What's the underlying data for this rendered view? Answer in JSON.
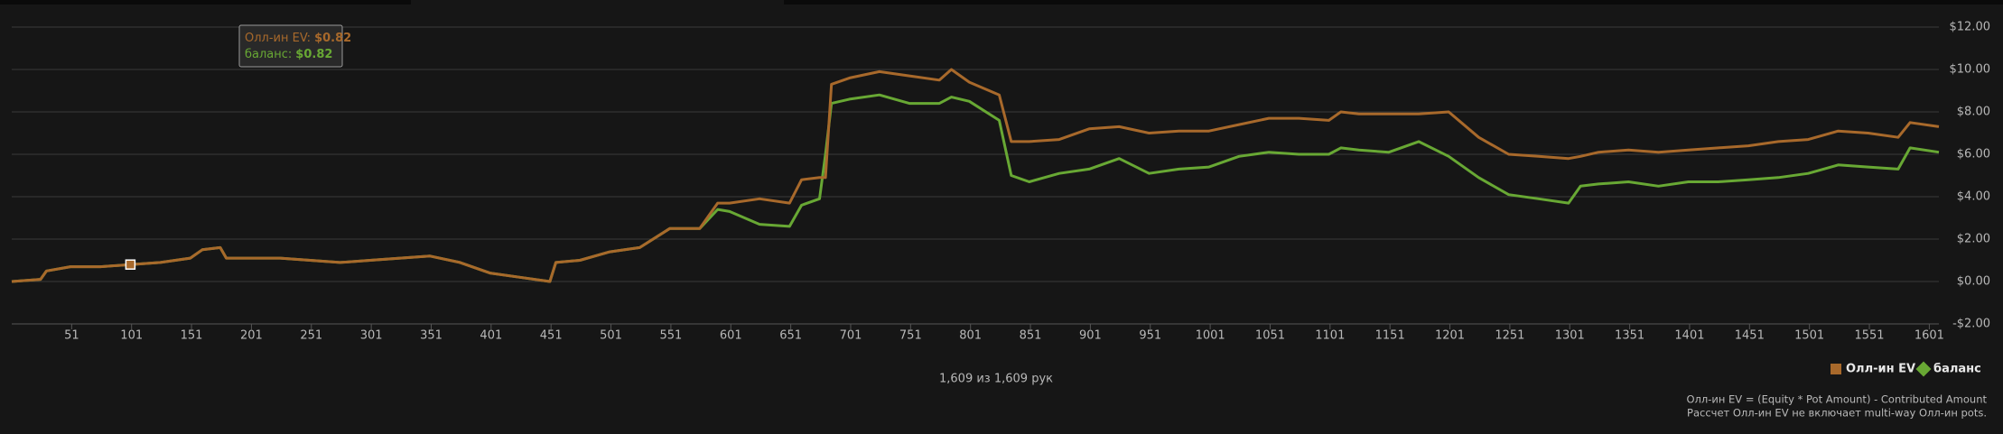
{
  "chart_data": {
    "type": "line",
    "x": [
      1,
      25,
      30,
      50,
      75,
      100,
      125,
      150,
      160,
      175,
      180,
      200,
      225,
      250,
      275,
      300,
      325,
      350,
      375,
      400,
      425,
      450,
      455,
      475,
      500,
      525,
      550,
      575,
      590,
      600,
      625,
      650,
      660,
      675,
      680,
      685,
      700,
      725,
      750,
      775,
      785,
      800,
      825,
      835,
      850,
      875,
      900,
      925,
      950,
      975,
      1000,
      1025,
      1050,
      1075,
      1100,
      1110,
      1125,
      1150,
      1175,
      1200,
      1225,
      1250,
      1275,
      1300,
      1310,
      1325,
      1350,
      1375,
      1400,
      1425,
      1450,
      1475,
      1500,
      1525,
      1550,
      1575,
      1585,
      1609
    ],
    "series": [
      {
        "name": "Олл-ин EV",
        "color": "#a8692b",
        "values": [
          0,
          0.1,
          0.5,
          0.7,
          0.7,
          0.8,
          0.9,
          1.1,
          1.5,
          1.6,
          1.1,
          1.1,
          1.1,
          1.0,
          0.9,
          1.0,
          1.1,
          1.2,
          0.9,
          0.4,
          0.2,
          0.0,
          0.9,
          1.0,
          1.4,
          1.6,
          2.5,
          2.5,
          3.7,
          3.7,
          3.9,
          3.7,
          4.8,
          4.9,
          4.9,
          9.3,
          9.6,
          9.9,
          9.7,
          9.5,
          10.0,
          9.4,
          8.8,
          6.6,
          6.6,
          6.7,
          7.2,
          7.3,
          7.0,
          7.1,
          7.1,
          7.4,
          7.7,
          7.7,
          7.6,
          8.0,
          7.9,
          7.9,
          7.9,
          8.0,
          6.8,
          6.0,
          5.9,
          5.8,
          5.9,
          6.1,
          6.2,
          6.1,
          6.2,
          6.3,
          6.4,
          6.6,
          6.7,
          7.1,
          7.0,
          6.8,
          7.5,
          7.3
        ]
      },
      {
        "name": "баланс",
        "color": "#68a834",
        "values": [
          0,
          0.1,
          0.5,
          0.7,
          0.7,
          0.8,
          0.9,
          1.1,
          1.5,
          1.6,
          1.1,
          1.1,
          1.1,
          1.0,
          0.9,
          1.0,
          1.1,
          1.2,
          0.9,
          0.4,
          0.2,
          0.0,
          0.9,
          1.0,
          1.4,
          1.6,
          2.5,
          2.5,
          3.4,
          3.3,
          2.7,
          2.6,
          3.6,
          3.9,
          6.0,
          8.4,
          8.6,
          8.8,
          8.4,
          8.4,
          8.7,
          8.5,
          7.6,
          5.0,
          4.7,
          5.1,
          5.3,
          5.8,
          5.1,
          5.3,
          5.4,
          5.9,
          6.1,
          6.0,
          6.0,
          6.3,
          6.2,
          6.1,
          6.6,
          5.9,
          4.9,
          4.1,
          3.9,
          3.7,
          4.5,
          4.6,
          4.7,
          4.5,
          4.7,
          4.7,
          4.8,
          4.9,
          5.1,
          5.5,
          5.4,
          5.3,
          6.3,
          6.1
        ]
      }
    ],
    "xlim": [
      1,
      1609
    ],
    "xticks": [
      51,
      101,
      151,
      201,
      251,
      301,
      351,
      401,
      451,
      501,
      551,
      601,
      651,
      701,
      751,
      801,
      851,
      901,
      951,
      1001,
      1051,
      1101,
      1151,
      1201,
      1251,
      1301,
      1351,
      1401,
      1451,
      1501,
      1551,
      1601
    ],
    "ylim": [
      -2,
      12
    ],
    "yticks": [
      {
        "value": -2,
        "label": "-$2.00"
      },
      {
        "value": 0,
        "label": "$0.00"
      },
      {
        "value": 2,
        "label": "$2.00"
      },
      {
        "value": 4,
        "label": "$4.00"
      },
      {
        "value": 6,
        "label": "$6.00"
      },
      {
        "value": 8,
        "label": "$8.00"
      },
      {
        "value": 10,
        "label": "$10.00"
      },
      {
        "value": 12,
        "label": "$12.00"
      }
    ],
    "grid": true,
    "legend": "bottom-right",
    "tooltip": {
      "items": [
        {
          "label": "Олл-ин EV:",
          "value": "$0.82"
        },
        {
          "label": "баланс:",
          "value": "$0.82"
        }
      ]
    }
  },
  "footer": {
    "hands": "1,609 из 1,609 рук",
    "notes": [
      "Олл-ин EV = (Equity * Pot Amount) - Contributed Amount",
      "Рассчет Олл-ин EV не включает multi-way Олл-ин pots."
    ]
  }
}
